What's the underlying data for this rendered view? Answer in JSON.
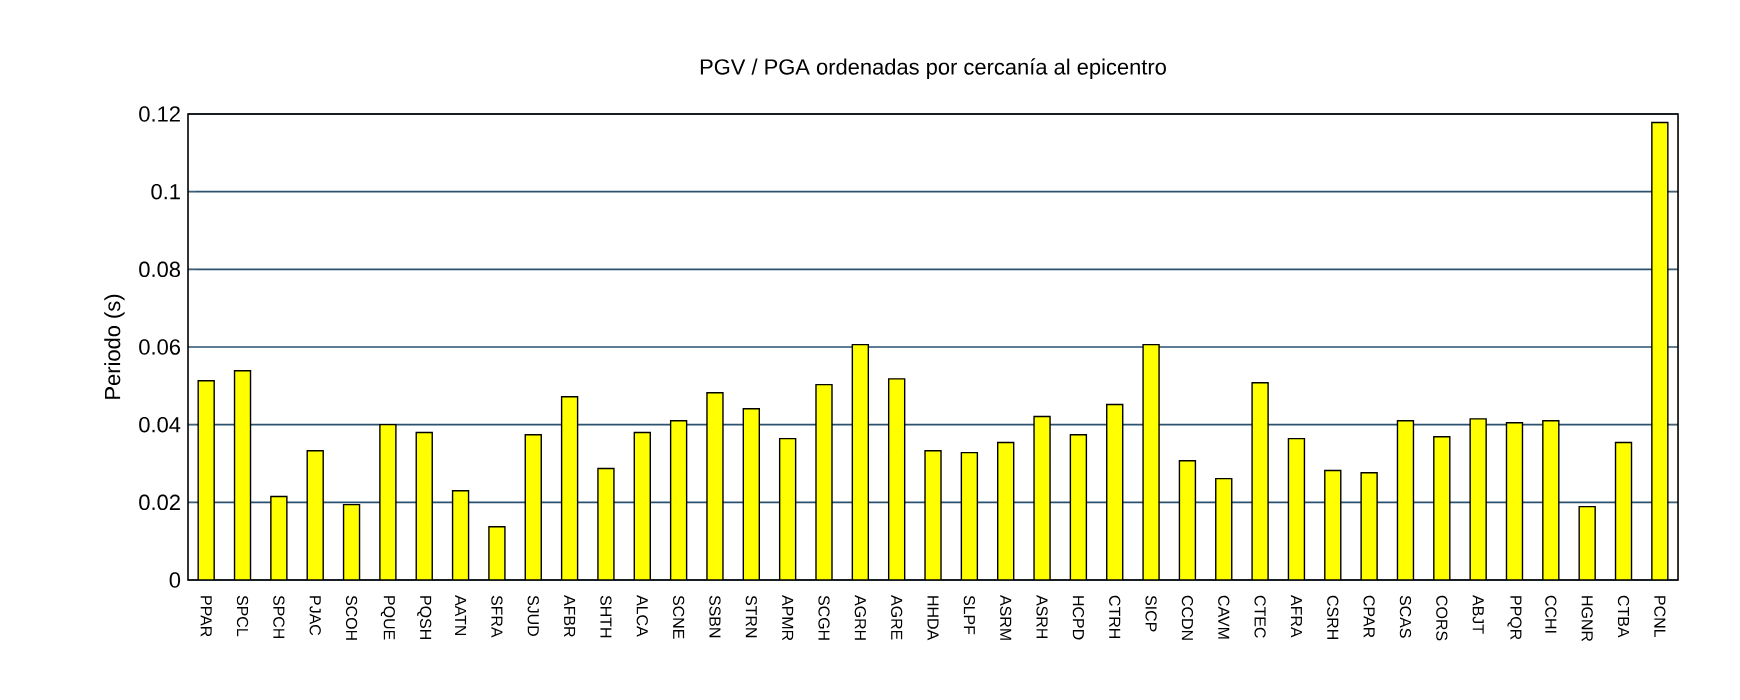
{
  "chart_data": {
    "type": "bar",
    "title": "PGV / PGA ordenadas por cercanía al epicentro",
    "ylabel": "Periodo (s)",
    "categories": [
      "PPAR",
      "SPCL",
      "SPCH",
      "PJAC",
      "SCOH",
      "PQUE",
      "PQSH",
      "AATN",
      "SFRA",
      "SJUD",
      "AFBR",
      "SHTH",
      "ALCA",
      "SCNE",
      "SSBN",
      "STRN",
      "APMR",
      "SCGH",
      "AGRH",
      "AGRE",
      "HHDA",
      "SLPF",
      "ASRM",
      "ASRH",
      "HCPD",
      "CTRH",
      "SICP",
      "CCDN",
      "CAVM",
      "CTEC",
      "AFRA",
      "CSRH",
      "CPAR",
      "SCAS",
      "CORS",
      "ABJT",
      "PPQR",
      "CCHI",
      "HGNR",
      "CTBA",
      "PCNL"
    ],
    "values": [
      0.0513,
      0.0539,
      0.0215,
      0.0333,
      0.0194,
      0.04,
      0.038,
      0.023,
      0.0137,
      0.0374,
      0.0472,
      0.0287,
      0.038,
      0.041,
      0.0482,
      0.0441,
      0.0364,
      0.0503,
      0.0606,
      0.0518,
      0.0333,
      0.0328,
      0.0354,
      0.0421,
      0.0374,
      0.0452,
      0.0606,
      0.0307,
      0.0261,
      0.0508,
      0.0364,
      0.0282,
      0.0276,
      0.041,
      0.0369,
      0.0415,
      0.0405,
      0.041,
      0.0189,
      0.0354,
      0.1178
    ],
    "color": "#ffff00",
    "ylim": [
      0,
      0.12
    ],
    "yticks": [
      0,
      0.02,
      0.04,
      0.06,
      0.08,
      0.1,
      0.12
    ],
    "grid": "y"
  }
}
